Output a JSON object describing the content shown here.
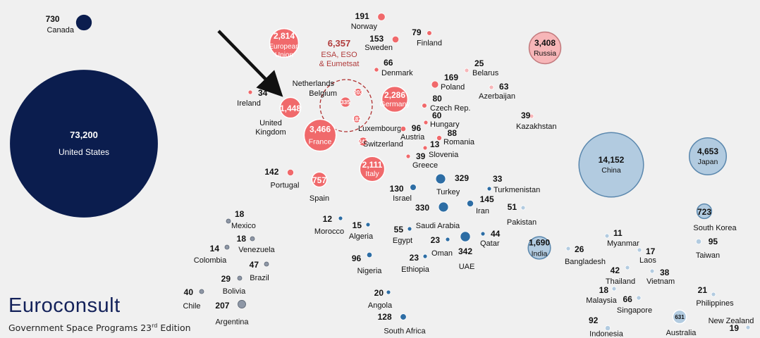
{
  "chart_data": {
    "type": "bubble",
    "title": "",
    "colors": {
      "americas": "#0b1d4e",
      "europe": "#f0696b",
      "europe_light": "#f7b6b8",
      "mena": "#2d6da4",
      "asia": "#b2cbe0",
      "americas_small": "#8e97a6"
    },
    "points": [
      {
        "name": "United States",
        "value": "73,200",
        "group": "americas"
      },
      {
        "name": "Canada",
        "value": "730",
        "group": "americas"
      },
      {
        "name": "European Union",
        "value": "2,814",
        "group": "europe"
      },
      {
        "name": "ESA, ESO & Eumetsat",
        "value": "6,357",
        "group": "europe"
      },
      {
        "name": "Norway",
        "value": "191",
        "group": "europe"
      },
      {
        "name": "Sweden",
        "value": "153",
        "group": "europe"
      },
      {
        "name": "Finland",
        "value": "79",
        "group": "europe"
      },
      {
        "name": "Denmark",
        "value": "66",
        "group": "europe"
      },
      {
        "name": "Netherlands",
        "value": "203",
        "group": "europe"
      },
      {
        "name": "Belgium",
        "value": "335",
        "group": "europe"
      },
      {
        "name": "Luxembourg",
        "value": "182",
        "group": "europe"
      },
      {
        "name": "Switzerland",
        "value": "247",
        "group": "europe"
      },
      {
        "name": "Ireland",
        "value": "34",
        "group": "europe"
      },
      {
        "name": "United Kingdom",
        "value": "1,448",
        "group": "europe"
      },
      {
        "name": "France",
        "value": "3,466",
        "group": "europe"
      },
      {
        "name": "Germany",
        "value": "2,286",
        "group": "europe"
      },
      {
        "name": "Italy",
        "value": "2,111",
        "group": "europe"
      },
      {
        "name": "Spain",
        "value": "757",
        "group": "europe"
      },
      {
        "name": "Portugal",
        "value": "142",
        "group": "europe"
      },
      {
        "name": "Poland",
        "value": "169",
        "group": "europe"
      },
      {
        "name": "Czech Rep.",
        "value": "80",
        "group": "europe"
      },
      {
        "name": "Hungary",
        "value": "60",
        "group": "europe"
      },
      {
        "name": "Austria",
        "value": "96",
        "group": "europe"
      },
      {
        "name": "Romania",
        "value": "88",
        "group": "europe"
      },
      {
        "name": "Slovenia",
        "value": "13",
        "group": "europe"
      },
      {
        "name": "Greece",
        "value": "39",
        "group": "europe"
      },
      {
        "name": "Russia",
        "value": "3,408",
        "group": "europe_light"
      },
      {
        "name": "Belarus",
        "value": "25",
        "group": "europe_light"
      },
      {
        "name": "Azerbaijan",
        "value": "63",
        "group": "europe_light"
      },
      {
        "name": "Kazakhstan",
        "value": "39",
        "group": "europe_light"
      },
      {
        "name": "Turkey",
        "value": "329",
        "group": "mena"
      },
      {
        "name": "Turkmenistan",
        "value": "33",
        "group": "mena"
      },
      {
        "name": "Israel",
        "value": "130",
        "group": "mena"
      },
      {
        "name": "Iran",
        "value": "145",
        "group": "mena"
      },
      {
        "name": "Saudi Arabia",
        "value": "330",
        "group": "mena"
      },
      {
        "name": "Morocco",
        "value": "12",
        "group": "mena"
      },
      {
        "name": "Algeria",
        "value": "15",
        "group": "mena"
      },
      {
        "name": "Egypt",
        "value": "55",
        "group": "mena"
      },
      {
        "name": "Oman",
        "value": "23",
        "group": "mena"
      },
      {
        "name": "UAE",
        "value": "342",
        "group": "mena"
      },
      {
        "name": "Qatar",
        "value": "44",
        "group": "mena"
      },
      {
        "name": "Nigeria",
        "value": "96",
        "group": "mena"
      },
      {
        "name": "Ethiopia",
        "value": "23",
        "group": "mena"
      },
      {
        "name": "Angola",
        "value": "20",
        "group": "mena"
      },
      {
        "name": "South Africa",
        "value": "128",
        "group": "mena"
      },
      {
        "name": "Pakistan",
        "value": "51",
        "group": "asia"
      },
      {
        "name": "China",
        "value": "14,152",
        "group": "asia"
      },
      {
        "name": "Japan",
        "value": "4,653",
        "group": "asia"
      },
      {
        "name": "South Korea",
        "value": "723",
        "group": "asia"
      },
      {
        "name": "Taiwan",
        "value": "95",
        "group": "asia"
      },
      {
        "name": "India",
        "value": "1,690",
        "group": "asia"
      },
      {
        "name": "Bangladesh",
        "value": "26",
        "group": "asia"
      },
      {
        "name": "Myanmar",
        "value": "11",
        "group": "asia"
      },
      {
        "name": "Laos",
        "value": "17",
        "group": "asia"
      },
      {
        "name": "Vietnam",
        "value": "38",
        "group": "asia"
      },
      {
        "name": "Thailand",
        "value": "42",
        "group": "asia"
      },
      {
        "name": "Malaysia",
        "value": "18",
        "group": "asia"
      },
      {
        "name": "Singapore",
        "value": "66",
        "group": "asia"
      },
      {
        "name": "Philippines",
        "value": "21",
        "group": "asia"
      },
      {
        "name": "Indonesia",
        "value": "92",
        "group": "asia"
      },
      {
        "name": "Australia",
        "value": "631",
        "group": "asia"
      },
      {
        "name": "New Zealand",
        "value": "19",
        "group": "asia"
      },
      {
        "name": "Mexico",
        "value": "18",
        "group": "americas_small"
      },
      {
        "name": "Venezuela",
        "value": "18",
        "group": "americas_small"
      },
      {
        "name": "Colombia",
        "value": "14",
        "group": "americas_small"
      },
      {
        "name": "Brazil",
        "value": "47",
        "group": "americas_small"
      },
      {
        "name": "Bolivia",
        "value": "29",
        "group": "americas_small"
      },
      {
        "name": "Chile",
        "value": "40",
        "group": "americas_small"
      },
      {
        "name": "Argentina",
        "value": "207",
        "group": "americas_small"
      }
    ]
  },
  "logo": {
    "brand": "Euroconsult",
    "subtitle": "Government Space Programs 23",
    "subtitle_sup": "rd",
    "subtitle_tail": " Edition"
  }
}
